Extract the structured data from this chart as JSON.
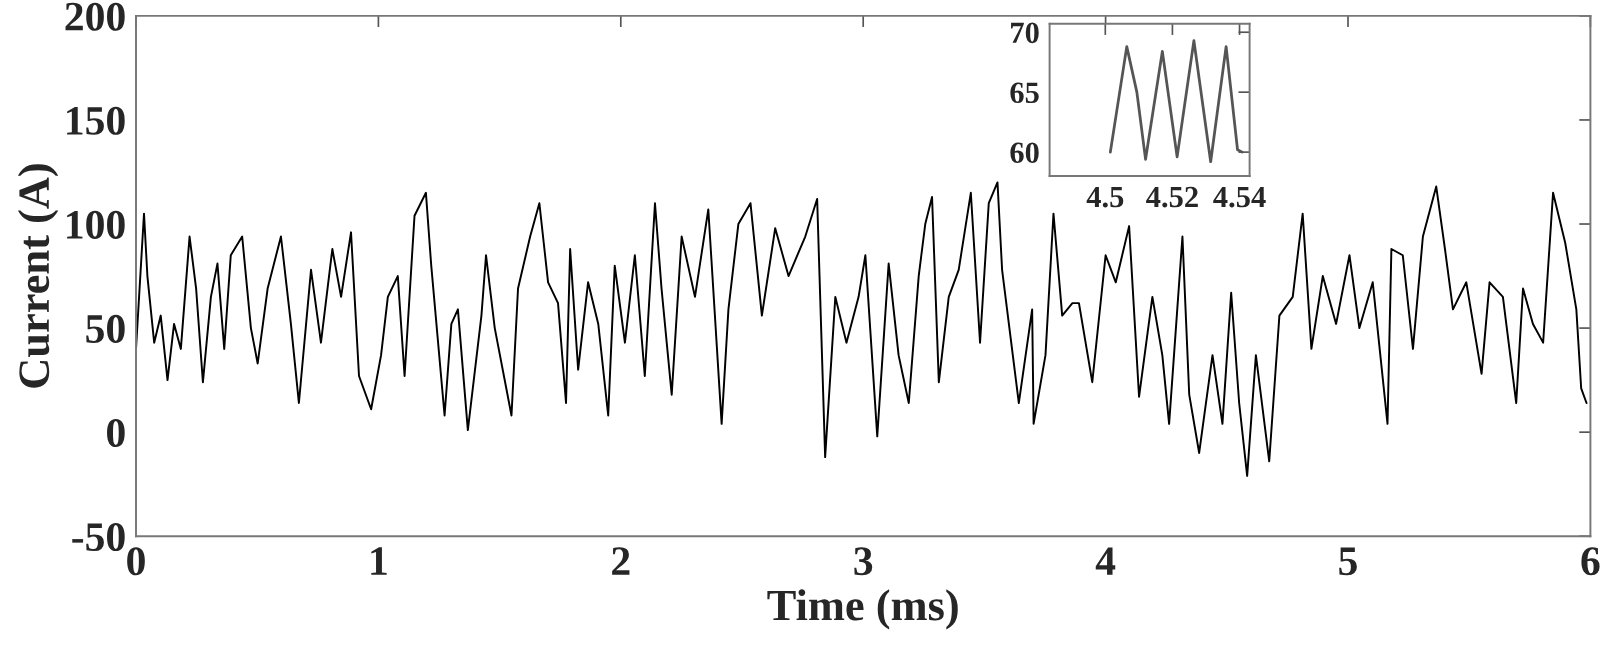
{
  "chart_data": [
    {
      "type": "line",
      "xlabel": "Time (ms)",
      "ylabel": "Current (A)",
      "xlim": [
        0,
        6
      ],
      "ylim": [
        -50,
        200
      ],
      "xticks": [
        0,
        1,
        2,
        3,
        4,
        5,
        6
      ],
      "yticks": [
        -50,
        0,
        50,
        100,
        150,
        200
      ],
      "grid": false,
      "legend": false,
      "marker": "none",
      "line_style": "solid",
      "series": [
        {
          "color": "#000000",
          "x": [
            0.0,
            0.033,
            0.047,
            0.075,
            0.102,
            0.13,
            0.157,
            0.185,
            0.221,
            0.248,
            0.276,
            0.309,
            0.336,
            0.364,
            0.391,
            0.438,
            0.474,
            0.502,
            0.543,
            0.598,
            0.639,
            0.672,
            0.722,
            0.763,
            0.81,
            0.846,
            0.887,
            0.92,
            0.97,
            1.011,
            1.039,
            1.08,
            1.108,
            1.149,
            1.196,
            1.218,
            1.273,
            1.301,
            1.328,
            1.369,
            1.425,
            1.444,
            1.48,
            1.549,
            1.576,
            1.626,
            1.664,
            1.7,
            1.741,
            1.774,
            1.791,
            1.824,
            1.865,
            1.907,
            1.948,
            1.975,
            2.017,
            2.058,
            2.099,
            2.141,
            2.168,
            2.21,
            2.251,
            2.306,
            2.361,
            2.416,
            2.444,
            2.485,
            2.535,
            2.582,
            2.637,
            2.692,
            2.761,
            2.81,
            2.843,
            2.885,
            2.931,
            2.981,
            3.009,
            3.058,
            3.105,
            3.146,
            3.188,
            3.229,
            3.256,
            3.284,
            3.312,
            3.353,
            3.394,
            3.444,
            3.482,
            3.518,
            3.554,
            3.573,
            3.642,
            3.697,
            3.703,
            3.752,
            3.785,
            3.821,
            3.863,
            3.89,
            3.945,
            4.0,
            4.042,
            4.097,
            4.138,
            4.193,
            4.234,
            4.262,
            4.317,
            4.345,
            4.386,
            4.441,
            4.482,
            4.518,
            4.551,
            4.584,
            4.62,
            4.675,
            4.717,
            4.772,
            4.813,
            4.849,
            4.896,
            4.951,
            5.006,
            5.047,
            5.102,
            5.163,
            5.179,
            5.226,
            5.268,
            5.309,
            5.364,
            5.4,
            5.433,
            5.488,
            5.551,
            5.584,
            5.639,
            5.694,
            5.722,
            5.763,
            5.805,
            5.846,
            5.896,
            5.942,
            5.962,
            5.984
          ],
          "values": [
            40,
            105,
            75,
            43,
            56,
            25,
            52,
            40,
            94,
            69,
            24,
            65,
            81,
            40,
            85,
            94,
            50,
            33,
            69,
            94,
            52,
            14,
            78,
            43,
            88,
            65,
            96,
            27,
            11,
            37,
            65,
            75,
            27,
            104,
            115,
            80,
            8,
            52,
            59,
            1,
            56,
            85,
            50,
            8,
            69,
            94,
            110,
            72,
            62,
            14,
            88,
            30,
            72,
            52,
            8,
            80,
            43,
            85,
            27,
            110,
            69,
            18,
            94,
            65,
            107,
            4,
            59,
            100,
            110,
            56,
            98,
            75,
            94,
            112,
            -12,
            65,
            43,
            65,
            85,
            -2,
            81,
            37,
            14,
            75,
            100,
            113,
            24,
            65,
            78,
            115,
            43,
            110,
            120,
            78,
            14,
            59,
            4,
            37,
            105,
            56,
            62,
            62,
            24,
            85,
            72,
            99,
            17,
            65,
            37,
            4,
            94,
            18,
            -10,
            37,
            4,
            67,
            14,
            -21,
            37,
            -14,
            56,
            65,
            105,
            40,
            75,
            52,
            85,
            50,
            72,
            4,
            88,
            85,
            40,
            94,
            118,
            88,
            59,
            72,
            28,
            72,
            65,
            14,
            69,
            52,
            43,
            115,
            91,
            59,
            21,
            14
          ]
        }
      ]
    },
    {
      "type": "line",
      "xlim": [
        4.4834,
        4.543
      ],
      "ylim": [
        58,
        70.7
      ],
      "xticks": [
        4.5,
        4.52,
        4.54
      ],
      "yticks": [
        60,
        65,
        70
      ],
      "grid": false,
      "legend": false,
      "marker": "none",
      "line_style": "solid",
      "series": [
        {
          "color": "#555555",
          "x": [
            4.5015,
            4.5064,
            4.5094,
            4.512,
            4.517,
            4.5214,
            4.5264,
            4.5314,
            4.536,
            4.5394,
            4.5408
          ],
          "values": [
            60,
            68.8,
            65,
            59.4,
            68.4,
            59.6,
            69.3,
            59.2,
            68.8,
            60.2,
            60
          ]
        }
      ]
    }
  ]
}
